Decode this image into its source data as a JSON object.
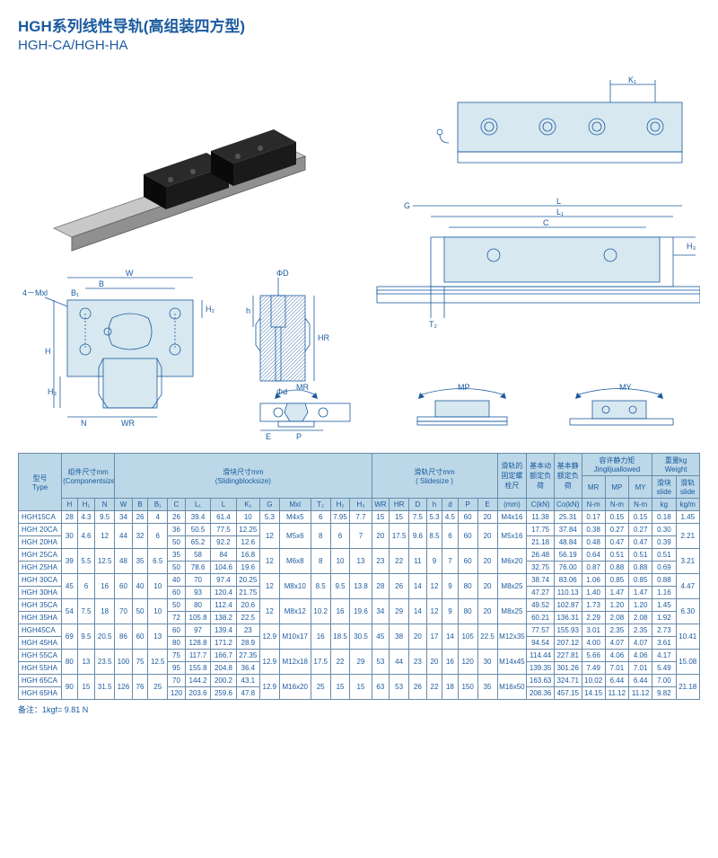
{
  "title_ch": "HGH系列线性导轨(高组装四方型)",
  "title_en": "HGH-CA/HGH-HA",
  "footnote": "备注：1kgf= 9.81 N",
  "diagram_labels": {
    "cross": {
      "W": "W",
      "B": "B",
      "B1": "B₁",
      "Mxl": "4－Mxl",
      "H": "H",
      "H2": "H₂",
      "H3": "H₃",
      "N": "N",
      "Wr": "WR"
    },
    "rail": {
      "phiD": "ΦD",
      "HR": "HR",
      "phid": "Φd",
      "E": "E",
      "P": "P",
      "h": "h"
    },
    "side": {
      "G": "G",
      "L": "L",
      "L1": "L₁",
      "C": "C",
      "K1": "K₁",
      "H3": "H₃",
      "T2": "T₂"
    },
    "mr": "MR",
    "mp": "MP",
    "my": "MY"
  },
  "table": {
    "header_groups": {
      "type": "型号\nType",
      "comp": "组件尺寸mm\n(Componentsize)",
      "block": "滑块尺寸mm\n(Slidingblocksize)",
      "slide": "滑轨尺寸mm\n( Slidesize )",
      "fix": "滑轨的\n固定螺\n栓尺",
      "cdyn": "基本动\n额定负\n荷",
      "cstat": "基本静\n额定负\n荷",
      "moment": "容许静力矩\nJinglijuallowed",
      "weight": "重量kg\nWeight"
    },
    "sub_cols": {
      "mm": "(mm)",
      "ckn": "C(kN)",
      "cokn": "Co(kN)",
      "nm": "N-m",
      "slide": "滑块\nslide",
      "rail": "滑轨\nslide",
      "kg": "kg",
      "kgm": "kg/m",
      "mr": "MR",
      "mp": "MP",
      "my": "MY"
    },
    "cols": [
      "H",
      "H₁",
      "N",
      "W",
      "B",
      "B₁",
      "C",
      "L₁",
      "L",
      "K₁",
      "G",
      "Mxl",
      "T₂",
      "H₂",
      "H₃",
      "WR",
      "HR",
      "D",
      "h",
      "d",
      "P",
      "E"
    ],
    "rows": [
      {
        "type": "HGH15CA",
        "H": "28",
        "H1": "4.3",
        "N": "9.5",
        "W": "34",
        "B": "26",
        "B1": "4",
        "C": "26",
        "L1": "39.4",
        "L": "61.4",
        "K1": "10",
        "G": "5.3",
        "Mxl": "M4x5",
        "T2": "6",
        "H2": "7.95",
        "H3": "7.7",
        "WR": "15",
        "HR": "15",
        "D": "7.5",
        "h": "5.3",
        "d": "4.5",
        "P": "60",
        "E": "20",
        "fix": "M4x16",
        "Ckn": "11.38",
        "Cokn": "25.31",
        "MR": "0.17",
        "MP": "0.15",
        "MY": "0.15",
        "wslide": "0.18",
        "wrail": "1.45"
      },
      {
        "type": "HGH 20CA",
        "C": "36",
        "L1": "50.5",
        "L": "77.5",
        "K1": "12.25",
        "Ckn": "17.75",
        "Cokn": "37.84",
        "MR": "0.38",
        "MP": "0.27",
        "MY": "0.27",
        "wslide": "0.30"
      },
      {
        "type": "HGH 20HA",
        "H": "30",
        "H1": "4.6",
        "N": "12",
        "W": "44",
        "B": "32",
        "B1": "6",
        "C": "50",
        "L1": "65.2",
        "L": "92.2",
        "K1": "12.6",
        "G": "12",
        "Mxl": "M5x6",
        "T2": "8",
        "H2": "6",
        "H3": "7",
        "WR": "20",
        "HR": "17.5",
        "D": "9.6",
        "h": "8.5",
        "d": "6",
        "P": "60",
        "E": "20",
        "fix": "M5x16",
        "Ckn": "21.18",
        "Cokn": "48.84",
        "MR": "0.48",
        "MP": "0.47",
        "MY": "0.47",
        "wslide": "0.39",
        "wrail": "2.21"
      },
      {
        "type": "HGH 25CA",
        "C": "35",
        "L1": "58",
        "L": "84",
        "K1": "16.8",
        "Ckn": "26.48",
        "Cokn": "56.19",
        "MR": "0.64",
        "MP": "0.51",
        "MY": "0.51",
        "wslide": "0.51"
      },
      {
        "type": "HGH 25HA",
        "H": "39",
        "H1": "5.5",
        "N": "12.5",
        "W": "48",
        "B": "35",
        "B1": "6.5",
        "C": "50",
        "L1": "78.6",
        "L": "104.6",
        "K1": "19.6",
        "G": "12",
        "Mxl": "M6x8",
        "T2": "8",
        "H2": "10",
        "H3": "13",
        "WR": "23",
        "HR": "22",
        "D": "11",
        "h": "9",
        "d": "7",
        "P": "60",
        "E": "20",
        "fix": "M6x20",
        "Ckn": "32.75",
        "Cokn": "76.00",
        "MR": "0.87",
        "MP": "0.88",
        "MY": "0.88",
        "wslide": "0.69",
        "wrail": "3.21"
      },
      {
        "type": "HGH 30CA",
        "C": "40",
        "L1": "70",
        "L": "97.4",
        "K1": "20.25",
        "Ckn": "38.74",
        "Cokn": "83.06",
        "MR": "1.06",
        "MP": "0.85",
        "MY": "0.85",
        "wslide": "0.88"
      },
      {
        "type": "HGH 30HA",
        "H": "45",
        "H1": "6",
        "N": "16",
        "W": "60",
        "B": "40",
        "B1": "10",
        "C": "60",
        "L1": "93",
        "L": "120.4",
        "K1": "21.75",
        "G": "12",
        "Mxl": "M8x10",
        "T2": "8.5",
        "H2": "9.5",
        "H3": "13.8",
        "WR": "28",
        "HR": "26",
        "D": "14",
        "h": "12",
        "d": "9",
        "P": "80",
        "E": "20",
        "fix": "M8x25",
        "Ckn": "47.27",
        "Cokn": "110.13",
        "MR": "1.40",
        "MP": "1.47",
        "MY": "1.47",
        "wslide": "1.16",
        "wrail": "4.47"
      },
      {
        "type": "HGH 35CA",
        "C": "50",
        "L1": "80",
        "L": "112.4",
        "K1": "20.6",
        "Ckn": "49.52",
        "Cokn": "102.87",
        "MR": "1.73",
        "MP": "1.20",
        "MY": "1.20",
        "wslide": "1.45"
      },
      {
        "type": "HGH 35HA",
        "H": "54",
        "H1": "7.5",
        "N": "18",
        "W": "70",
        "B": "50",
        "B1": "10",
        "C": "72",
        "L1": "105.8",
        "L": "138.2",
        "K1": "22.5",
        "G": "12",
        "Mxl": "M8x12",
        "T2": "10.2",
        "H2": "16",
        "H3": "19.6",
        "WR": "34",
        "HR": "29",
        "D": "14",
        "h": "12",
        "d": "9",
        "P": "80",
        "E": "20",
        "fix": "M8x25",
        "Ckn": "60.21",
        "Cokn": "136.31",
        "MR": "2.29",
        "MP": "2.08",
        "MY": "2.08",
        "wslide": "1.92",
        "wrail": "6.30"
      },
      {
        "type": "HGH45CA",
        "C": "60",
        "L1": "97",
        "L": "139.4",
        "K1": "23",
        "Ckn": "77.57",
        "Cokn": "155.93",
        "MR": "3.01",
        "MP": "2.35",
        "MY": "2.35",
        "wslide": "2.73"
      },
      {
        "type": "HGH 45HA",
        "H": "69",
        "H1": "9.5",
        "N": "20.5",
        "W": "86",
        "B": "60",
        "B1": "13",
        "C": "80",
        "L1": "128.8",
        "L": "171.2",
        "K1": "28.9",
        "G": "12.9",
        "Mxl": "M10x17",
        "T2": "16",
        "H2": "18.5",
        "H3": "30.5",
        "WR": "45",
        "HR": "38",
        "D": "20",
        "h": "17",
        "d": "14",
        "P": "105",
        "E": "22.5",
        "fix": "M12x35",
        "Ckn": "94.54",
        "Cokn": "207.12",
        "MR": "4.00",
        "MP": "4.07",
        "MY": "4.07",
        "wslide": "3.61",
        "wrail": "10.41"
      },
      {
        "type": "HGH 55CA",
        "C": "75",
        "L1": "117.7",
        "L": "166.7",
        "K1": "27.35",
        "Ckn": "114.44",
        "Cokn": "227.81",
        "MR": "5.66",
        "MP": "4.06",
        "MY": "4.06",
        "wslide": "4.17"
      },
      {
        "type": "HGH 55HA",
        "H": "80",
        "H1": "13",
        "N": "23.5",
        "W": "100",
        "B": "75",
        "B1": "12.5",
        "C": "95",
        "L1": "155.8",
        "L": "204.8",
        "K1": "36.4",
        "G": "12.9",
        "Mxl": "M12x18",
        "T2": "17.5",
        "H2": "22",
        "H3": "29",
        "WR": "53",
        "HR": "44",
        "D": "23",
        "h": "20",
        "d": "16",
        "P": "120",
        "E": "30",
        "fix": "M14x45",
        "Ckn": "139.35",
        "Cokn": "301.26",
        "MR": "7.49",
        "MP": "7.01",
        "MY": "7.01",
        "wslide": "5.49",
        "wrail": "15.08"
      },
      {
        "type": "HGH 65CA",
        "C": "70",
        "L1": "144.2",
        "L": "200.2",
        "K1": "43.1",
        "Ckn": "163.63",
        "Cokn": "324.71",
        "MR": "10.02",
        "MP": "6.44",
        "MY": "6.44",
        "wslide": "7.00"
      },
      {
        "type": "HGH 65HA",
        "H": "90",
        "H1": "15",
        "N": "31.5",
        "W": "126",
        "B": "76",
        "B1": "25",
        "C": "120",
        "L1": "203.6",
        "L": "259.6",
        "K1": "47.8",
        "G": "12.9",
        "Mxl": "M16x20",
        "T2": "25",
        "H2": "15",
        "H3": "15",
        "WR": "63",
        "HR": "53",
        "D": "26",
        "h": "22",
        "d": "18",
        "P": "150",
        "E": "35",
        "fix": "M16x50",
        "Ckn": "208.36",
        "Cokn": "457.15",
        "MR": "14.15",
        "MP": "11.12",
        "MY": "11.12",
        "wslide": "9.82",
        "wrail": "21.18"
      }
    ],
    "row_spans": [
      {
        "start": 1,
        "span": 2,
        "keys": [
          "H",
          "H1",
          "N",
          "W",
          "B",
          "B1",
          "G",
          "Mxl",
          "T2",
          "H2",
          "H3",
          "WR",
          "HR",
          "D",
          "h",
          "d",
          "P",
          "E",
          "fix",
          "wrail"
        ]
      },
      {
        "start": 3,
        "span": 2,
        "keys": [
          "H",
          "H1",
          "N",
          "W",
          "B",
          "B1",
          "G",
          "Mxl",
          "T2",
          "H2",
          "H3",
          "WR",
          "HR",
          "D",
          "h",
          "d",
          "P",
          "E",
          "fix",
          "wrail"
        ]
      },
      {
        "start": 5,
        "span": 2,
        "keys": [
          "H",
          "H1",
          "N",
          "W",
          "B",
          "B1",
          "G",
          "Mxl",
          "T2",
          "H2",
          "H3",
          "WR",
          "HR",
          "D",
          "h",
          "d",
          "P",
          "E",
          "fix",
          "wrail"
        ]
      },
      {
        "start": 7,
        "span": 2,
        "keys": [
          "H",
          "H1",
          "N",
          "W",
          "B",
          "B1",
          "G",
          "Mxl",
          "T2",
          "H2",
          "H3",
          "WR",
          "HR",
          "D",
          "h",
          "d",
          "P",
          "E",
          "fix",
          "wrail"
        ]
      },
      {
        "start": 9,
        "span": 2,
        "keys": [
          "H",
          "H1",
          "N",
          "W",
          "B",
          "B1",
          "G",
          "Mxl",
          "T2",
          "H2",
          "H3",
          "WR",
          "HR",
          "D",
          "h",
          "d",
          "P",
          "E",
          "fix",
          "wrail"
        ]
      },
      {
        "start": 11,
        "span": 2,
        "keys": [
          "H",
          "H1",
          "N",
          "W",
          "B",
          "B1",
          "G",
          "Mxl",
          "T2",
          "H2",
          "H3",
          "WR",
          "HR",
          "D",
          "h",
          "d",
          "P",
          "E",
          "fix",
          "wrail"
        ]
      },
      {
        "start": 13,
        "span": 2,
        "keys": [
          "H",
          "H1",
          "N",
          "W",
          "B",
          "B1",
          "G",
          "Mxl",
          "T2",
          "H2",
          "H3",
          "WR",
          "HR",
          "D",
          "h",
          "d",
          "P",
          "E",
          "fix",
          "wrail"
        ]
      }
    ]
  }
}
